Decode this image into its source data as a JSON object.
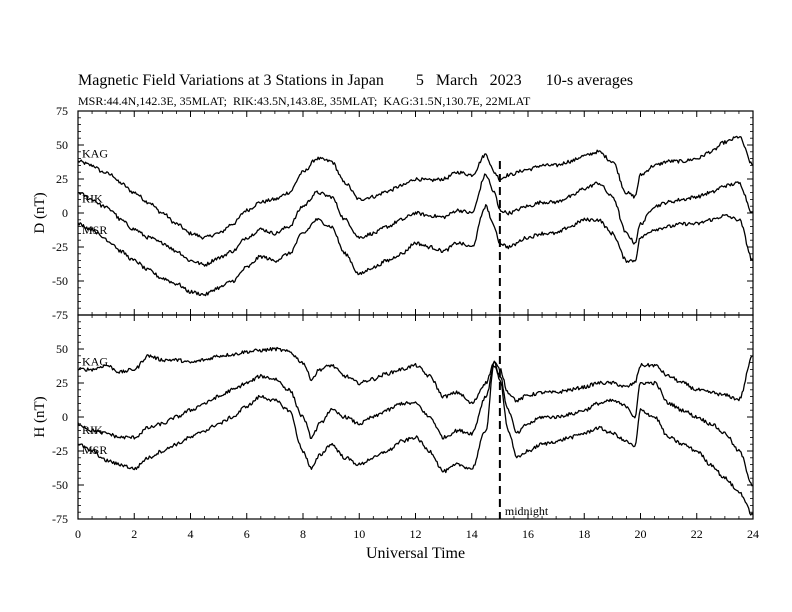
{
  "chart_data": {
    "type": "line",
    "title": "Magnetic Field Variations at 3 Stations in Japan        5   March   2023      10-s averages",
    "subtitle": "MSR:44.4N,142.3E, 35MLAT;  RIK:43.5N,143.8E, 35MLAT;  KAG:31.5N,130.7E, 22MLAT",
    "xlabel": "Universal Time",
    "xlim": [
      0,
      24
    ],
    "xticks": [
      0,
      2,
      4,
      6,
      8,
      10,
      12,
      14,
      16,
      18,
      20,
      22,
      24
    ],
    "vline": {
      "x": 15,
      "style": "dashed",
      "label": "midnight"
    },
    "panels": [
      {
        "ylabel": "D (nT)",
        "ylim": [
          -75,
          75
        ],
        "yticks": [
          75,
          50,
          25,
          0,
          -25,
          -50,
          -75
        ],
        "series": [
          {
            "name": "KAG",
            "x": [
              0,
              0.5,
              0.9,
              1.2,
              1.5,
              2,
              2.5,
              3,
              3.5,
              4,
              4.5,
              5,
              5.5,
              6,
              6.5,
              7,
              7.5,
              8,
              8.5,
              9,
              9.5,
              10,
              10.5,
              11,
              11.5,
              12,
              12.5,
              13,
              13.5,
              14,
              14.5,
              14.8,
              15,
              15.3,
              16,
              16.5,
              17,
              17.5,
              18,
              18.5,
              19,
              19.5,
              19.8,
              20,
              20.5,
              21,
              21.5,
              22,
              22.5,
              23,
              23.5,
              24
            ],
            "y": [
              38,
              35,
              30,
              28,
              22,
              15,
              8,
              0,
              -8,
              -15,
              -18,
              -15,
              -8,
              2,
              8,
              10,
              15,
              30,
              40,
              38,
              22,
              10,
              12,
              16,
              20,
              25,
              24,
              25,
              30,
              28,
              43,
              30,
              25,
              28,
              32,
              35,
              35,
              38,
              42,
              45,
              38,
              15,
              12,
              28,
              35,
              38,
              38,
              40,
              45,
              52,
              56,
              35
            ]
          },
          {
            "name": "RIK",
            "x": [
              0,
              0.5,
              0.9,
              1.2,
              1.5,
              2,
              2.5,
              3,
              3.5,
              4,
              4.5,
              5,
              5.5,
              6,
              6.5,
              7,
              7.5,
              8,
              8.5,
              9,
              9.5,
              10,
              10.5,
              11,
              11.5,
              12,
              12.5,
              13,
              13.5,
              14,
              14.5,
              14.8,
              15,
              15.3,
              16,
              16.5,
              17,
              17.5,
              18,
              18.5,
              19,
              19.5,
              19.8,
              20,
              20.5,
              21,
              21.5,
              22,
              22.5,
              23,
              23.5,
              24
            ],
            "y": [
              15,
              10,
              5,
              2,
              -5,
              -12,
              -18,
              -22,
              -28,
              -35,
              -38,
              -33,
              -28,
              -18,
              -12,
              -15,
              -10,
              5,
              15,
              12,
              -5,
              -18,
              -15,
              -10,
              -5,
              0,
              -2,
              -3,
              2,
              0,
              28,
              15,
              2,
              0,
              5,
              8,
              8,
              12,
              18,
              22,
              12,
              -15,
              -22,
              -8,
              5,
              8,
              10,
              12,
              15,
              20,
              22,
              0
            ]
          },
          {
            "name": "MSR",
            "x": [
              0,
              0.5,
              0.9,
              1.2,
              1.5,
              2,
              2.5,
              3,
              3.5,
              4,
              4.5,
              5,
              5.5,
              6,
              6.5,
              7,
              7.5,
              8,
              8.5,
              9,
              9.5,
              10,
              10.5,
              11,
              11.5,
              12,
              12.5,
              13,
              13.5,
              14,
              14.5,
              14.8,
              15,
              15.3,
              16,
              16.5,
              17,
              17.5,
              18,
              18.5,
              19,
              19.5,
              19.8,
              20,
              20.5,
              21,
              21.5,
              22,
              22.5,
              23,
              23.5,
              24
            ],
            "y": [
              -8,
              -12,
              -18,
              -22,
              -28,
              -35,
              -42,
              -48,
              -52,
              -58,
              -60,
              -55,
              -50,
              -40,
              -32,
              -35,
              -30,
              -15,
              -5,
              -10,
              -30,
              -45,
              -40,
              -35,
              -30,
              -22,
              -25,
              -28,
              -22,
              -25,
              5,
              -10,
              -22,
              -25,
              -18,
              -15,
              -15,
              -10,
              -5,
              -5,
              -15,
              -35,
              -35,
              -18,
              -12,
              -10,
              -8,
              -8,
              -5,
              -2,
              -5,
              -35
            ]
          }
        ]
      },
      {
        "ylabel": "H (nT)",
        "ylim": [
          -75,
          75
        ],
        "yticks": [
          75,
          50,
          25,
          0,
          -25,
          -50,
          -75
        ],
        "series": [
          {
            "name": "KAG",
            "x": [
              0,
              0.5,
              1,
              1.5,
              2,
              2.5,
              3,
              3.5,
              4,
              4.5,
              5,
              5.5,
              6,
              6.5,
              7,
              7.5,
              8,
              8.3,
              8.6,
              9,
              9.5,
              10,
              10.5,
              11,
              11.5,
              12,
              12.5,
              13,
              13.5,
              14,
              14.5,
              14.8,
              15,
              15.3,
              15.6,
              16,
              16.5,
              17,
              17.5,
              18,
              18.5,
              19,
              19.5,
              19.8,
              20,
              20.5,
              21,
              21.5,
              22,
              22.5,
              23,
              23.5,
              24
            ],
            "y": [
              35,
              35,
              38,
              33,
              35,
              45,
              42,
              42,
              40,
              42,
              45,
              46,
              48,
              49,
              50,
              48,
              40,
              28,
              35,
              38,
              30,
              25,
              28,
              32,
              35,
              38,
              30,
              15,
              18,
              10,
              25,
              40,
              35,
              18,
              12,
              16,
              18,
              18,
              20,
              22,
              25,
              25,
              22,
              25,
              38,
              38,
              30,
              25,
              20,
              18,
              16,
              13,
              45
            ]
          },
          {
            "name": "RIK",
            "x": [
              0,
              0.5,
              1,
              1.5,
              2,
              2.5,
              3,
              3.5,
              4,
              4.5,
              5,
              5.5,
              6,
              6.5,
              7,
              7.5,
              8,
              8.3,
              8.6,
              9,
              9.5,
              10,
              10.5,
              11,
              11.5,
              12,
              12.5,
              13,
              13.5,
              14,
              14.5,
              14.8,
              15,
              15.3,
              15.6,
              16,
              16.5,
              17,
              17.5,
              18,
              18.5,
              19,
              19.5,
              19.8,
              20,
              20.5,
              21,
              21.5,
              22,
              22.5,
              23,
              23.5,
              24
            ],
            "y": [
              -5,
              -10,
              -12,
              -15,
              -15,
              -8,
              -5,
              0,
              5,
              10,
              15,
              20,
              25,
              30,
              28,
              20,
              0,
              -15,
              -5,
              5,
              0,
              -5,
              0,
              5,
              10,
              10,
              0,
              -15,
              -10,
              -12,
              15,
              38,
              30,
              5,
              -12,
              -5,
              0,
              0,
              2,
              5,
              10,
              12,
              8,
              0,
              25,
              25,
              10,
              5,
              0,
              -5,
              -12,
              -25,
              -50
            ]
          },
          {
            "name": "MSR",
            "x": [
              0,
              0.5,
              1,
              1.5,
              2,
              2.5,
              3,
              3.5,
              4,
              4.5,
              5,
              5.5,
              6,
              6.5,
              7,
              7.5,
              8,
              8.3,
              8.6,
              9,
              9.5,
              10,
              10.5,
              11,
              11.5,
              12,
              12.5,
              13,
              13.5,
              14,
              14.5,
              14.8,
              15,
              15.3,
              15.6,
              16,
              16.5,
              17,
              17.5,
              18,
              18.5,
              19,
              19.5,
              19.8,
              20,
              20.5,
              21,
              21.5,
              22,
              22.5,
              23,
              23.5,
              24
            ],
            "y": [
              -20,
              -25,
              -32,
              -35,
              -38,
              -30,
              -25,
              -20,
              -15,
              -10,
              -5,
              0,
              8,
              15,
              12,
              5,
              -25,
              -38,
              -28,
              -20,
              -30,
              -35,
              -30,
              -25,
              -18,
              -15,
              -25,
              -40,
              -35,
              -38,
              -10,
              40,
              28,
              -10,
              -30,
              -25,
              -20,
              -18,
              -15,
              -12,
              -8,
              -12,
              -18,
              -22,
              5,
              0,
              -15,
              -20,
              -25,
              -35,
              -45,
              -55,
              -72
            ]
          }
        ]
      }
    ]
  }
}
